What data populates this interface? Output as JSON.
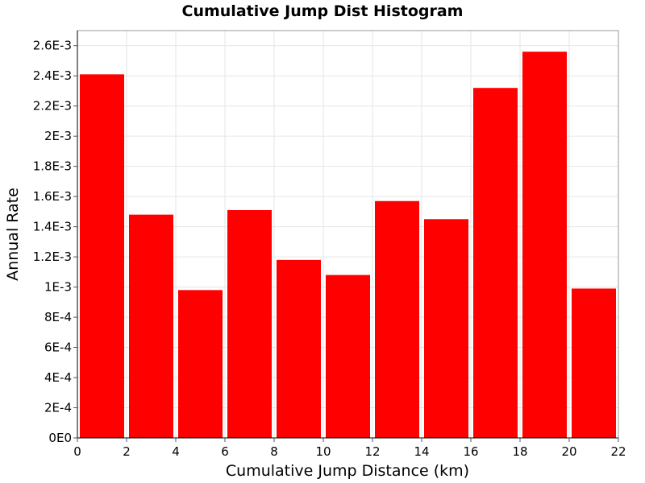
{
  "colors": {
    "bar": "#ff0000",
    "background": "#ffffff",
    "grid": "#e6e6e6"
  },
  "chart_data": {
    "type": "bar",
    "title": "Cumulative Jump Dist Histogram",
    "xlabel": "Cumulative Jump Distance (km)",
    "ylabel": "Annual Rate",
    "xlim": [
      0,
      22
    ],
    "ylim": [
      0,
      0.0027
    ],
    "bin_width": 2,
    "grid": true,
    "legend": "none",
    "x_ticks": [
      {
        "value": 0,
        "label": "0"
      },
      {
        "value": 2,
        "label": "2"
      },
      {
        "value": 4,
        "label": "4"
      },
      {
        "value": 6,
        "label": "6"
      },
      {
        "value": 8,
        "label": "8"
      },
      {
        "value": 10,
        "label": "10"
      },
      {
        "value": 12,
        "label": "12"
      },
      {
        "value": 14,
        "label": "14"
      },
      {
        "value": 16,
        "label": "16"
      },
      {
        "value": 18,
        "label": "18"
      },
      {
        "value": 20,
        "label": "20"
      },
      {
        "value": 22,
        "label": "22"
      }
    ],
    "y_ticks": [
      {
        "value": 0,
        "label": "0E0"
      },
      {
        "value": 0.0002,
        "label": "2E-4"
      },
      {
        "value": 0.0004,
        "label": "4E-4"
      },
      {
        "value": 0.0006,
        "label": "6E-4"
      },
      {
        "value": 0.0008,
        "label": "8E-4"
      },
      {
        "value": 0.001,
        "label": "1E-3"
      },
      {
        "value": 0.0012,
        "label": "1.2E-3"
      },
      {
        "value": 0.0014,
        "label": "1.4E-3"
      },
      {
        "value": 0.0016,
        "label": "1.6E-3"
      },
      {
        "value": 0.0018,
        "label": "1.8E-3"
      },
      {
        "value": 0.002,
        "label": "2E-3"
      },
      {
        "value": 0.0022,
        "label": "2.2E-3"
      },
      {
        "value": 0.0024,
        "label": "2.4E-3"
      },
      {
        "value": 0.0026,
        "label": "2.6E-3"
      }
    ],
    "bins": [
      {
        "x_start": 0,
        "x_end": 2,
        "value": 0.00241
      },
      {
        "x_start": 2,
        "x_end": 4,
        "value": 0.00148
      },
      {
        "x_start": 4,
        "x_end": 6,
        "value": 0.00098
      },
      {
        "x_start": 6,
        "x_end": 8,
        "value": 0.00151
      },
      {
        "x_start": 8,
        "x_end": 10,
        "value": 0.00118
      },
      {
        "x_start": 10,
        "x_end": 12,
        "value": 0.00108
      },
      {
        "x_start": 12,
        "x_end": 14,
        "value": 0.00157
      },
      {
        "x_start": 14,
        "x_end": 16,
        "value": 0.00145
      },
      {
        "x_start": 16,
        "x_end": 18,
        "value": 0.00232
      },
      {
        "x_start": 18,
        "x_end": 20,
        "value": 0.00256
      },
      {
        "x_start": 20,
        "x_end": 22,
        "value": 0.00099
      }
    ]
  }
}
